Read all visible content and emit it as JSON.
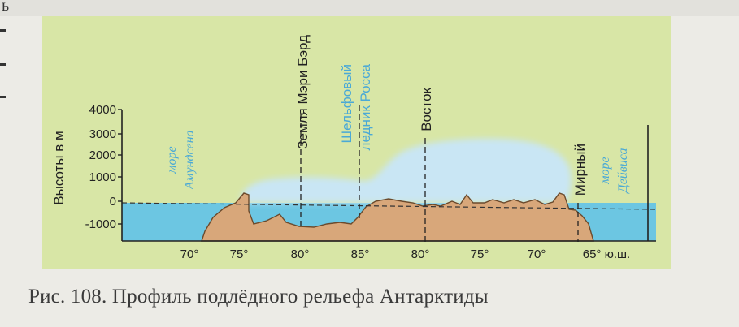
{
  "figure": {
    "caption": "Рис. 108. Профиль подлёдного рельефа Антарктиды",
    "top_fragment": "ь",
    "colors": {
      "panel": "#d8e6a6",
      "sea": "#6cc6e2",
      "ice": "#c9e6f4",
      "bedrock": "#d8a77a",
      "sea_label": "#4aa9d6",
      "text": "#222222"
    }
  },
  "diagram": {
    "y_axis_title": "Высоты в м",
    "y_ticks": [
      "4000",
      "3000",
      "2000",
      "1000",
      "0",
      "-1000"
    ],
    "x_ticks": [
      "70°",
      "75°",
      "80°",
      "85°",
      "80°",
      "75°",
      "70°",
      "65° ю.ш."
    ],
    "labels": {
      "sea_left_1": "море",
      "sea_left_2": "Амундсена",
      "mary_byrd": "Земля Мэри Бэрд",
      "ross_1": "Шельфовый",
      "ross_2": "ледник Росса",
      "vostok": "Восток",
      "mirny": "Мирный",
      "sea_right_1": "море",
      "sea_right_2": "Дейвиса"
    }
  }
}
